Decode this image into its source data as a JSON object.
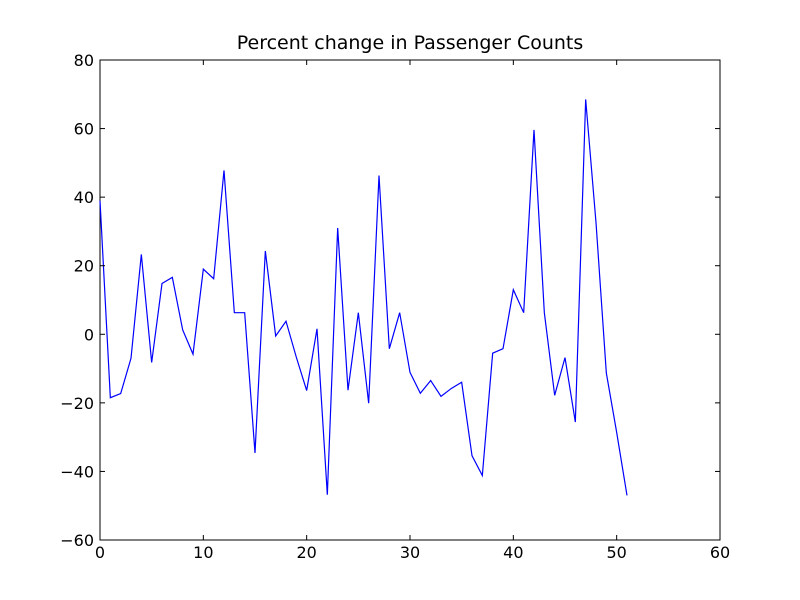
{
  "chart_data": {
    "type": "line",
    "title": "Percent change in Passenger Counts",
    "xlabel": "",
    "ylabel": "",
    "xlim": [
      0,
      60
    ],
    "ylim": [
      -60,
      80
    ],
    "x_ticks": [
      0,
      10,
      20,
      30,
      40,
      50,
      60
    ],
    "y_ticks": [
      -60,
      -40,
      -20,
      0,
      20,
      40,
      60,
      80
    ],
    "x_tick_labels": [
      "0",
      "10",
      "20",
      "30",
      "40",
      "50",
      "60"
    ],
    "y_tick_labels": [
      "−60",
      "−40",
      "−20",
      "0",
      "20",
      "40",
      "60",
      "80"
    ],
    "grid": false,
    "legend": "none",
    "series": [
      {
        "color": "#0000ff",
        "x": [
          0,
          1,
          2,
          3,
          4,
          5,
          6,
          7,
          8,
          9,
          10,
          11,
          12,
          13,
          14,
          15,
          16,
          17,
          18,
          19,
          20,
          21,
          22,
          23,
          24,
          25,
          26,
          27,
          28,
          29,
          30,
          31,
          32,
          33,
          34,
          35,
          36,
          37,
          38,
          39,
          40,
          41,
          42,
          43,
          44,
          45,
          46,
          47,
          48,
          49,
          50,
          51
        ],
        "values": [
          39,
          -18.5,
          -17.3,
          -7,
          23.3,
          -8.2,
          14.8,
          16.6,
          1.3,
          -5.8,
          19,
          16.2,
          47.8,
          6.3,
          6.3,
          -34.6,
          24.3,
          -0.5,
          3.8,
          -6.7,
          -16.4,
          1.6,
          -46.8,
          31,
          -16.3,
          6.3,
          -20.1,
          46.3,
          -4.2,
          6.3,
          -11.1,
          -17.2,
          -13.5,
          -18.1,
          -15.8,
          -14,
          -35.4,
          -41.2,
          -5.5,
          -4.2,
          13,
          6.3,
          59.6,
          6.3,
          -17.8,
          -6.8,
          -25.6,
          68.5,
          32.6,
          -11.3,
          -28.6,
          -47
        ]
      }
    ]
  }
}
